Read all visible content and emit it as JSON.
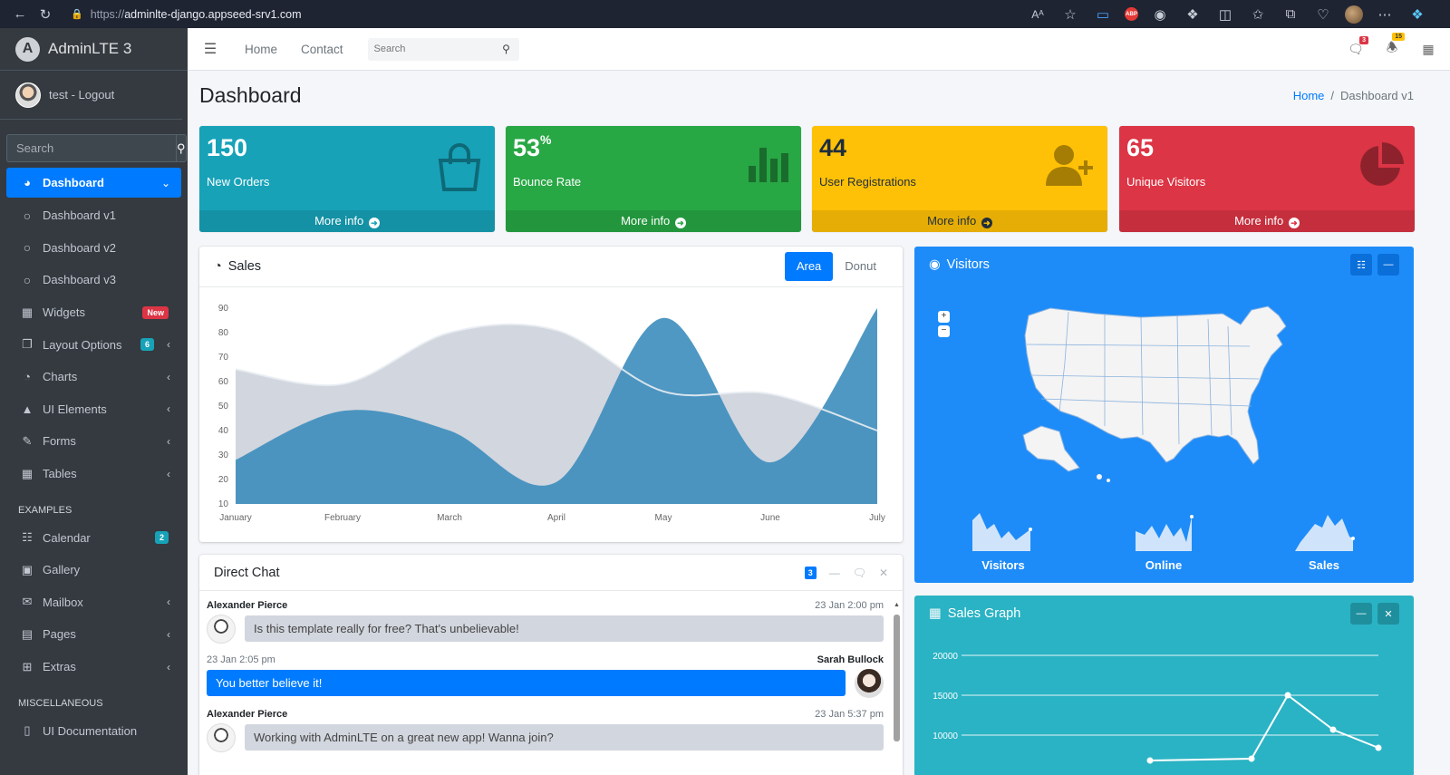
{
  "browser": {
    "url_prefix": "https://",
    "url_host": "adminlte-django.appseed-srv1.com"
  },
  "brand": {
    "logo": "A",
    "name": "AdminLTE 3"
  },
  "user": {
    "name": "test - Logout"
  },
  "sidebar": {
    "search_placeholder": "Search",
    "active_label": "Dashboard",
    "sub_items": [
      "Dashboard v1",
      "Dashboard v2",
      "Dashboard v3"
    ],
    "items": [
      {
        "label": "Widgets",
        "badge": "New"
      },
      {
        "label": "Layout Options",
        "badge": "6"
      },
      {
        "label": "Charts"
      },
      {
        "label": "UI Elements"
      },
      {
        "label": "Forms"
      },
      {
        "label": "Tables"
      }
    ],
    "header_examples": "EXAMPLES",
    "examples": [
      {
        "label": "Calendar",
        "badge": "2"
      },
      {
        "label": "Gallery"
      },
      {
        "label": "Mailbox"
      },
      {
        "label": "Pages"
      },
      {
        "label": "Extras"
      }
    ],
    "header_misc": "MISCELLANEOUS",
    "misc": [
      {
        "label": "UI Documentation"
      }
    ]
  },
  "topnav": {
    "links": [
      "Home",
      "Contact"
    ],
    "search_placeholder": "Search",
    "messages_count": "3",
    "notifications_count": "15"
  },
  "header": {
    "title": "Dashboard",
    "breadcrumb_home": "Home",
    "breadcrumb_sep": "/",
    "breadcrumb_current": "Dashboard v1"
  },
  "smallboxes": [
    {
      "value": "150",
      "suffix": "",
      "label": "New Orders",
      "more": "More info",
      "color": "#17a2b8",
      "icon": "shopping-bag-icon"
    },
    {
      "value": "53",
      "suffix": "%",
      "label": "Bounce Rate",
      "more": "More info",
      "color": "#28a745",
      "icon": "bar-chart-icon"
    },
    {
      "value": "44",
      "suffix": "",
      "label": "User Registrations",
      "more": "More info",
      "color": "#ffc107",
      "icon": "user-plus-icon"
    },
    {
      "value": "65",
      "suffix": "",
      "label": "Unique Visitors",
      "more": "More info",
      "color": "#dc3545",
      "icon": "pie-chart-icon"
    }
  ],
  "sales": {
    "title": "Sales",
    "tab_area": "Area",
    "tab_donut": "Donut"
  },
  "chart_data": [
    {
      "type": "area",
      "categories": [
        "January",
        "February",
        "March",
        "April",
        "May",
        "June",
        "July"
      ],
      "ylim": [
        10,
        90
      ],
      "yticks": [
        10,
        20,
        30,
        40,
        50,
        60,
        70,
        80,
        90
      ],
      "series": [
        {
          "values": [
            65,
            59,
            80,
            81,
            56,
            55,
            40
          ],
          "color": "#d2d6de"
        },
        {
          "values": [
            28,
            48,
            40,
            19,
            86,
            27,
            90
          ],
          "color": "#3c8dbc"
        }
      ]
    },
    {
      "type": "line",
      "yticks": [
        10000,
        15000,
        20000
      ],
      "labels": [
        "10000",
        "15000",
        "20000"
      ]
    }
  ],
  "chat": {
    "title": "Direct Chat",
    "badge": "3",
    "messages": [
      {
        "side": "left",
        "name": "Alexander Pierce",
        "time": "23 Jan 2:00 pm",
        "text": "Is this template really for free? That's unbelievable!"
      },
      {
        "side": "right",
        "name": "Sarah Bullock",
        "time": "23 Jan 2:05 pm",
        "text": "You better believe it!"
      },
      {
        "side": "left",
        "name": "Alexander Pierce",
        "time": "23 Jan 5:37 pm",
        "text": "Working with AdminLTE on a great new app! Wanna join?"
      }
    ]
  },
  "visitors": {
    "title": "Visitors",
    "zoom_in": "+",
    "zoom_out": "−",
    "sparks": [
      "Visitors",
      "Online",
      "Sales"
    ]
  },
  "sales_graph": {
    "title": "Sales Graph"
  }
}
